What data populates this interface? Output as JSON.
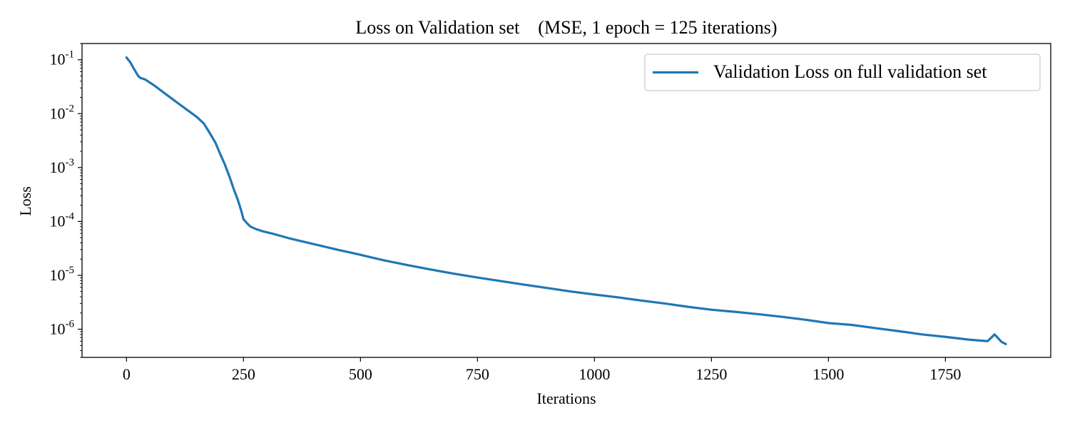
{
  "chart_data": {
    "type": "line",
    "title": "Loss on Validation set    (MSE, 1 epoch = 125 iterations)",
    "xlabel": "Iterations",
    "ylabel": "Loss",
    "xlim": [
      -95,
      1975
    ],
    "ylim": [
      3e-07,
      0.2
    ],
    "yscale": "log",
    "grid": false,
    "legend_position": "top-right",
    "x_ticks": [
      0,
      250,
      500,
      750,
      1000,
      1250,
      1500,
      1750
    ],
    "x_tick_labels": [
      "0",
      "250",
      "500",
      "750",
      "1000",
      "1250",
      "1500",
      "1750"
    ],
    "y_ticks": [
      1e-06,
      1e-05,
      0.0001,
      0.001,
      0.01,
      0.1
    ],
    "y_tick_labels": [
      {
        "base": "10",
        "exp": "-6"
      },
      {
        "base": "10",
        "exp": "-5"
      },
      {
        "base": "10",
        "exp": "-4"
      },
      {
        "base": "10",
        "exp": "-3"
      },
      {
        "base": "10",
        "exp": "-2"
      },
      {
        "base": "10",
        "exp": "-1"
      }
    ],
    "series": [
      {
        "name": "Validation Loss on full validation set",
        "color": "#1f77b4",
        "x": [
          0,
          8,
          15,
          25,
          30,
          40,
          60,
          90,
          120,
          150,
          165,
          175,
          190,
          200,
          210,
          220,
          230,
          238,
          245,
          250,
          255,
          260,
          265,
          275,
          290,
          310,
          350,
          400,
          450,
          500,
          550,
          600,
          650,
          700,
          750,
          800,
          850,
          900,
          950,
          1000,
          1050,
          1100,
          1150,
          1200,
          1250,
          1300,
          1350,
          1400,
          1450,
          1500,
          1550,
          1600,
          1650,
          1700,
          1750,
          1800,
          1840,
          1855,
          1870,
          1879
        ],
        "y": [
          0.11,
          0.09,
          0.07,
          0.05,
          0.046,
          0.043,
          0.033,
          0.021,
          0.0135,
          0.0087,
          0.0066,
          0.0048,
          0.0029,
          0.0018,
          0.00115,
          0.00068,
          0.00038,
          0.00025,
          0.00016,
          0.00011,
          9.8e-05,
          8.8e-05,
          8e-05,
          7.3e-05,
          6.6e-05,
          6e-05,
          4.8e-05,
          3.8e-05,
          3e-05,
          2.4e-05,
          1.9e-05,
          1.55e-05,
          1.28e-05,
          1.07e-05,
          9.1e-06,
          7.8e-06,
          6.7e-06,
          5.8e-06,
          5e-06,
          4.4e-06,
          3.9e-06,
          3.4e-06,
          3e-06,
          2.6e-06,
          2.3e-06,
          2.1e-06,
          1.9e-06,
          1.7e-06,
          1.5e-06,
          1.3e-06,
          1.2e-06,
          1.05e-06,
          9.2e-07,
          8e-07,
          7.2e-07,
          6.4e-07,
          6e-07,
          8e-07,
          5.8e-07,
          5.3e-07
        ]
      }
    ]
  }
}
